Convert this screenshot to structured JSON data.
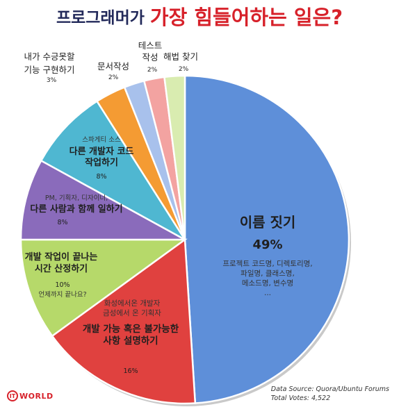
{
  "title": {
    "part1": "프로그래머가",
    "part2": "가장 힘들어하는 일은?"
  },
  "chart_data": {
    "type": "pie",
    "total_votes_label": "Total Votes: 4,522",
    "source_label": "Data Source: Quora/Ubuntu Forums",
    "slices": [
      {
        "name": "이름 짓기",
        "value": 49,
        "pct_label": "49%",
        "color": "#5e8fd9",
        "notes": [
          "프로젝트 코드명, 디렉토리명,",
          "파일명, 클래스명,",
          "메소드명, 변수명",
          "..."
        ]
      },
      {
        "name": "개발 가능 혹은 불가능한 사항 설명하기",
        "value": 16,
        "pct_label": "16%",
        "color": "#e0413f",
        "notes": [
          "화성에서온 개발자",
          "금성에서 온 기획자"
        ]
      },
      {
        "name": "개발 작업이 끝나는 시간 산정하기",
        "value": 10,
        "pct_label": "10%",
        "color": "#b6d96a",
        "notes": [
          "언제까지 끝나요?"
        ]
      },
      {
        "name": "다른 사람과 함께 일하기",
        "value": 8,
        "pct_label": "8%",
        "color": "#8a6bbb",
        "notes": [
          "PM, 기획자, 디자이너,"
        ]
      },
      {
        "name": "다른 개발자 코드 작업하기",
        "value": 8,
        "pct_label": "8%",
        "color": "#4fb7d1",
        "notes": [
          "스파게티 소스"
        ]
      },
      {
        "name": "내가 수긍못할 기능 구현하기",
        "value": 3,
        "pct_label": "3%",
        "color": "#f49b33",
        "notes": []
      },
      {
        "name": "문서작성",
        "value": 2,
        "pct_label": "2%",
        "color": "#a8c1ec",
        "notes": []
      },
      {
        "name": "테스트 작성",
        "value": 2,
        "pct_label": "2%",
        "color": "#f3a3a1",
        "notes": []
      },
      {
        "name": "해법 찾기",
        "value": 2,
        "pct_label": "2%",
        "color": "#d9ecb0",
        "notes": []
      }
    ]
  },
  "logo": {
    "mark": "IT",
    "word": "WORLD"
  }
}
